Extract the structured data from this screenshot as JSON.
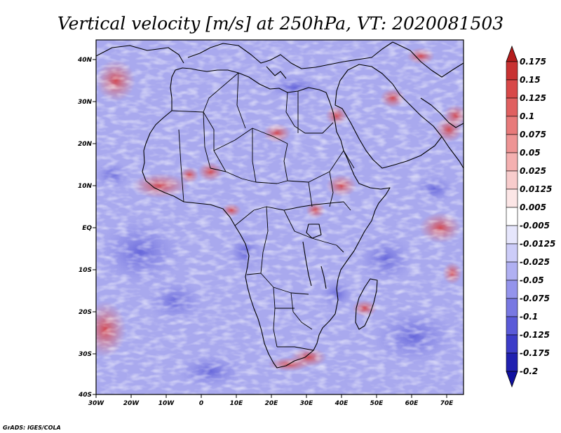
{
  "chart_data": {
    "type": "heatmap",
    "title": "Vertical velocity [m/s] at 250hPa, VT: 2020081503",
    "variable": "Vertical velocity",
    "units": "m/s",
    "level": "250hPa",
    "valid_time": "2020081503",
    "x_ticks": [
      "30W",
      "20W",
      "10W",
      "0",
      "10E",
      "20E",
      "30E",
      "40E",
      "50E",
      "60E",
      "70E"
    ],
    "y_ticks": [
      "40N",
      "30N",
      "20N",
      "10N",
      "EQ",
      "10S",
      "20S",
      "30S",
      "40S"
    ],
    "lon_range": [
      -30,
      75
    ],
    "lat_range": [
      -40,
      45
    ],
    "colorbar": {
      "levels": [
        "0.175",
        "0.15",
        "0.125",
        "0.1",
        "0.075",
        "0.05",
        "0.025",
        "0.0125",
        "0.005",
        "-0.005",
        "-0.0125",
        "-0.025",
        "-0.05",
        "-0.075",
        "-0.1",
        "-0.125",
        "-0.175",
        "-0.2"
      ],
      "colors": [
        "#b41c1c",
        "#c83232",
        "#d84848",
        "#e06060",
        "#e87a7a",
        "#ee9494",
        "#f4b0b0",
        "#f8cccc",
        "#fce6e6",
        "#ffffff",
        "#e6e6fc",
        "#ccccf8",
        "#b0b0f2",
        "#9494ec",
        "#7878e2",
        "#5a5ad8",
        "#3c3cc8",
        "#2020b0",
        "#1010a0"
      ]
    },
    "credit": "GrADS: IGES/COLA"
  }
}
